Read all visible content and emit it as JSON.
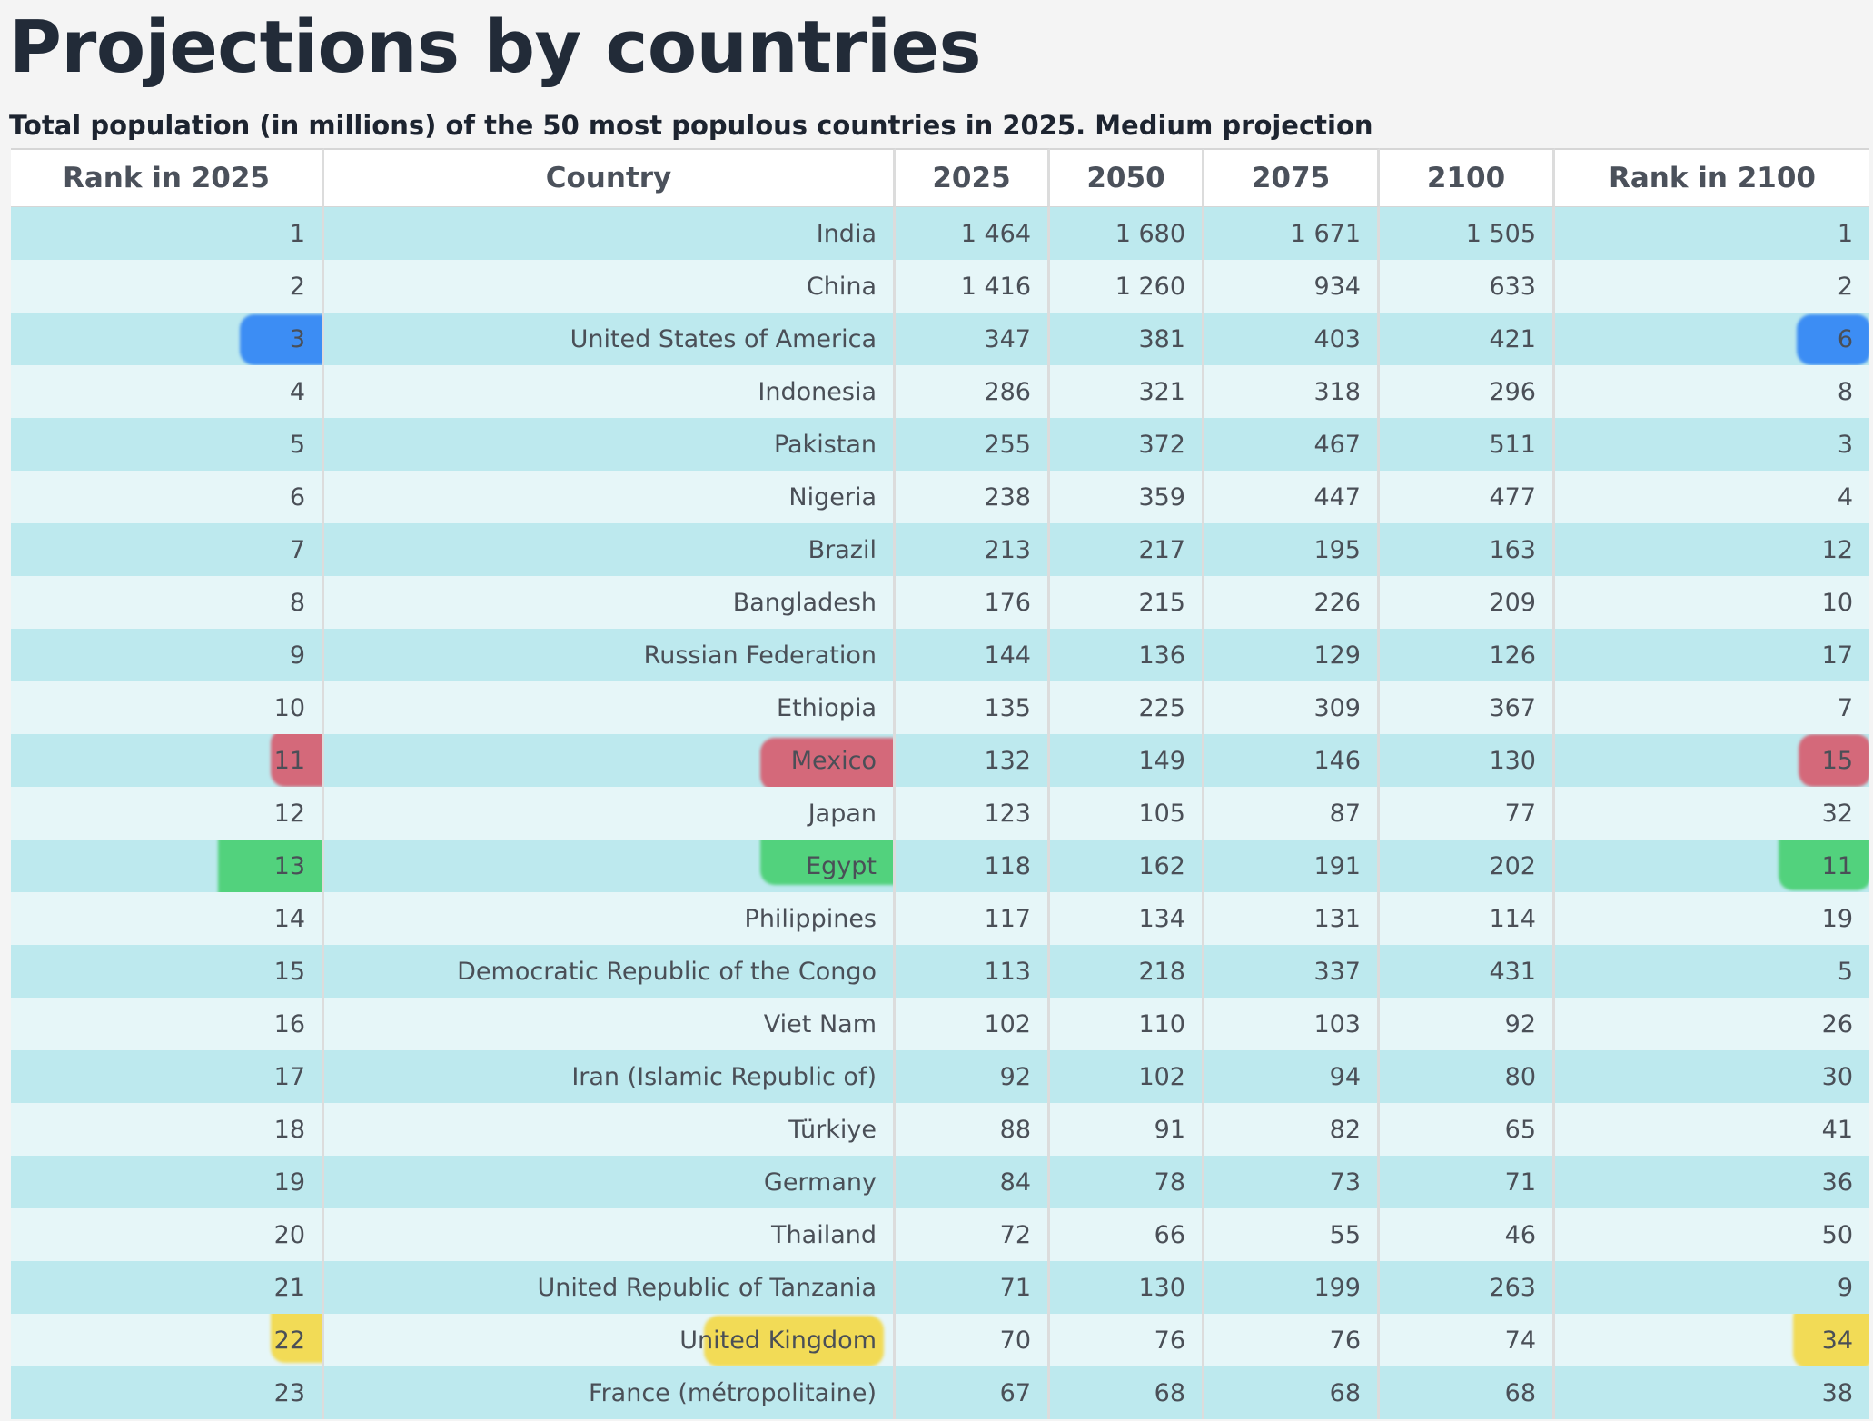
{
  "page_title": "Projections by countries",
  "subtitle": "Total population (in millions) of the 50 most populous countries in 2025. Medium projection",
  "columns": [
    "Rank in 2025",
    "Country",
    "2025",
    "2050",
    "2075",
    "2100",
    "Rank in 2100"
  ],
  "rows": [
    [
      "1",
      "India",
      "1 464",
      "1 680",
      "1 671",
      "1 505",
      "1"
    ],
    [
      "2",
      "China",
      "1 416",
      "1 260",
      "934",
      "633",
      "2"
    ],
    [
      "3",
      "United States of America",
      "347",
      "381",
      "403",
      "421",
      "6"
    ],
    [
      "4",
      "Indonesia",
      "286",
      "321",
      "318",
      "296",
      "8"
    ],
    [
      "5",
      "Pakistan",
      "255",
      "372",
      "467",
      "511",
      "3"
    ],
    [
      "6",
      "Nigeria",
      "238",
      "359",
      "447",
      "477",
      "4"
    ],
    [
      "7",
      "Brazil",
      "213",
      "217",
      "195",
      "163",
      "12"
    ],
    [
      "8",
      "Bangladesh",
      "176",
      "215",
      "226",
      "209",
      "10"
    ],
    [
      "9",
      "Russian Federation",
      "144",
      "136",
      "129",
      "126",
      "17"
    ],
    [
      "10",
      "Ethiopia",
      "135",
      "225",
      "309",
      "367",
      "7"
    ],
    [
      "11",
      "Mexico",
      "132",
      "149",
      "146",
      "130",
      "15"
    ],
    [
      "12",
      "Japan",
      "123",
      "105",
      "87",
      "77",
      "32"
    ],
    [
      "13",
      "Egypt",
      "118",
      "162",
      "191",
      "202",
      "11"
    ],
    [
      "14",
      "Philippines",
      "117",
      "134",
      "131",
      "114",
      "19"
    ],
    [
      "15",
      "Democratic Republic of the Congo",
      "113",
      "218",
      "337",
      "431",
      "5"
    ],
    [
      "16",
      "Viet Nam",
      "102",
      "110",
      "103",
      "92",
      "26"
    ],
    [
      "17",
      "Iran (Islamic Republic of)",
      "92",
      "102",
      "94",
      "80",
      "30"
    ],
    [
      "18",
      "Türkiye",
      "88",
      "91",
      "82",
      "65",
      "41"
    ],
    [
      "19",
      "Germany",
      "84",
      "78",
      "73",
      "71",
      "36"
    ],
    [
      "20",
      "Thailand",
      "72",
      "66",
      "55",
      "46",
      "50"
    ],
    [
      "21",
      "United Republic of Tanzania",
      "71",
      "130",
      "199",
      "263",
      "9"
    ],
    [
      "22",
      "United Kingdom",
      "70",
      "76",
      "76",
      "74",
      "34"
    ],
    [
      "23",
      "France (métropolitaine)",
      "67",
      "68",
      "68",
      "68",
      "38"
    ]
  ],
  "highlights": [
    {
      "row": 2,
      "color": "#267cf4",
      "color_name": "blue",
      "cells": [
        0,
        6
      ]
    },
    {
      "row": 10,
      "color": "#da485c",
      "color_name": "red",
      "cells": [
        0,
        1,
        6
      ]
    },
    {
      "row": 12,
      "color": "#40ce68",
      "color_name": "green",
      "cells": [
        0,
        1,
        6
      ]
    },
    {
      "row": 21,
      "color": "#f3d63a",
      "color_name": "yellow",
      "cells": [
        0,
        1,
        6
      ]
    }
  ],
  "colors": {
    "row_odd": "#bde9ee",
    "row_even": "#e6f6f8",
    "header_bg": "#ffffff",
    "title_text": "#222b38"
  }
}
